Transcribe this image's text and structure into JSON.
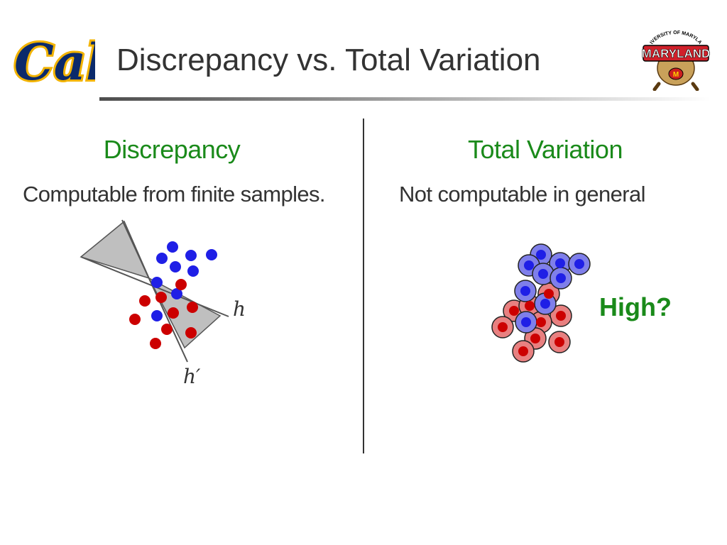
{
  "slide": {
    "title": "Discrepancy vs. Total Variation"
  },
  "logos": {
    "left": {
      "text": "Cal",
      "icon": "cal-script-logo"
    },
    "right": {
      "text": "UNIVERSITY OF MARYLAND",
      "icon": "maryland-terrapin-logo"
    }
  },
  "left_column": {
    "heading": "Discrepancy",
    "text": "Computable from finite samples.",
    "diagram": {
      "labels": {
        "h": "h",
        "h_prime": "h′"
      }
    }
  },
  "right_column": {
    "heading": "Total Variation",
    "text": "Not computable in general",
    "callout": "High?"
  },
  "colors": {
    "heading_green": "#1a8a1a",
    "point_blue": "#1f1fe6",
    "point_red": "#cc0000",
    "region_gray": "#bfbfbf",
    "halo_blue": "#7f7fea",
    "halo_red": "#e88080"
  }
}
